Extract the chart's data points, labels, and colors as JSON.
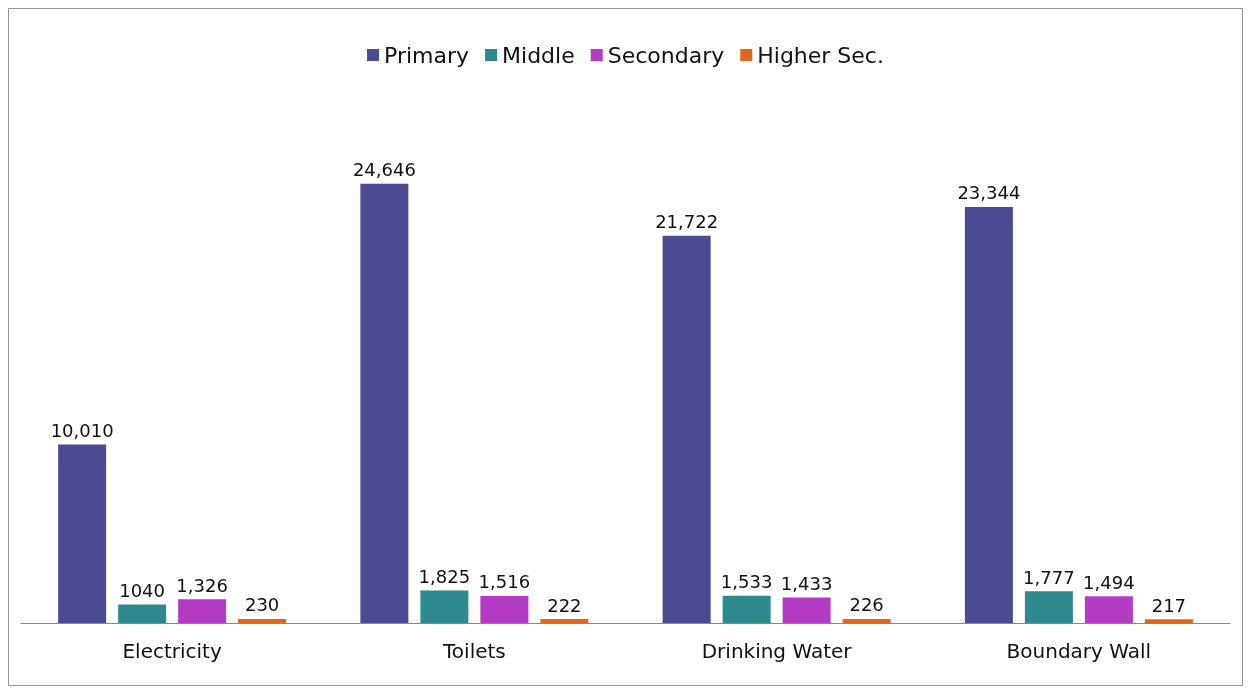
{
  "chart_data": {
    "type": "bar",
    "categories": [
      "Electricity",
      "Toilets",
      "Drinking Water",
      "Boundary Wall"
    ],
    "series": [
      {
        "name": "Primary",
        "color": "#4b4a92",
        "values": [
          10010,
          24646,
          21722,
          23344
        ],
        "value_labels": [
          "10,010",
          "24,646",
          "21,722",
          "23,344"
        ]
      },
      {
        "name": "Middle",
        "color": "#2e8a8c",
        "values": [
          1040,
          1825,
          1533,
          1777
        ],
        "value_labels": [
          "1040",
          "1,825",
          "1,533",
          "1,777"
        ]
      },
      {
        "name": "Secondary",
        "color": "#b43cc4",
        "values": [
          1326,
          1516,
          1433,
          1494
        ],
        "value_labels": [
          "1,326",
          "1,516",
          "1,433",
          "1,494"
        ]
      },
      {
        "name": "Higher Sec.",
        "color": "#e0661e",
        "values": [
          230,
          222,
          226,
          217
        ],
        "value_labels": [
          "230",
          "222",
          "226",
          "217"
        ]
      }
    ],
    "legend": "top"
  }
}
